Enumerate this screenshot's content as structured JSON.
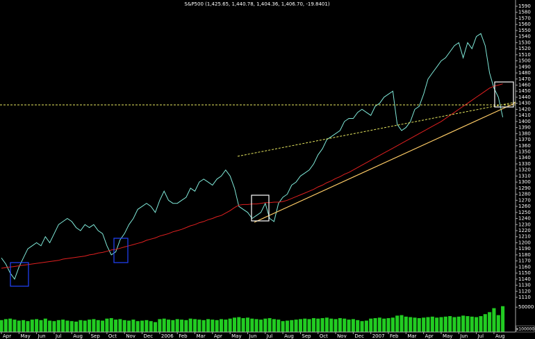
{
  "chart_data": {
    "type": "line",
    "title": "S&P500 (1,425.65, 1,440.78, 1,404.36, 1,406.70, -19.8401)",
    "categories": [
      "Apr",
      null,
      null,
      null,
      "May",
      null,
      null,
      null,
      "Jun",
      null,
      null,
      null,
      "Jul",
      null,
      null,
      null,
      "Aug",
      null,
      null,
      null,
      "Sep",
      null,
      null,
      null,
      "Oct",
      null,
      null,
      null,
      "Nov",
      null,
      null,
      null,
      "Dec",
      null,
      null,
      null,
      "2006",
      null,
      null,
      null,
      "Feb",
      null,
      null,
      null,
      "Mar",
      null,
      null,
      null,
      "Apr",
      null,
      null,
      null,
      "May",
      null,
      null,
      null,
      "Jun",
      null,
      null,
      null,
      "Jul",
      null,
      null,
      null,
      "Aug",
      null,
      null,
      null,
      "Sep",
      null,
      null,
      null,
      "Oct",
      null,
      null,
      null,
      "Nov",
      null,
      null,
      null,
      "Dec",
      null,
      null,
      null,
      "2007",
      null,
      null,
      null,
      "Feb",
      null,
      null,
      null,
      "Mar",
      null,
      null,
      null,
      "Apr",
      null,
      null,
      null,
      "May",
      null,
      null,
      null,
      "Jun",
      null,
      null,
      null,
      "Jul",
      null,
      null,
      null,
      "Aug",
      null,
      null
    ],
    "series": [
      {
        "color": "#7fe8d8",
        "values": [
          1175,
          1165,
          1150,
          1140,
          1160,
          1175,
          1190,
          1195,
          1200,
          1195,
          1210,
          1200,
          1215,
          1230,
          1235,
          1240,
          1235,
          1225,
          1220,
          1230,
          1225,
          1230,
          1220,
          1215,
          1195,
          1180,
          1185,
          1205,
          1215,
          1230,
          1240,
          1255,
          1260,
          1265,
          1260,
          1250,
          1270,
          1285,
          1270,
          1265,
          1265,
          1270,
          1275,
          1290,
          1285,
          1300,
          1305,
          1300,
          1295,
          1305,
          1310,
          1320,
          1310,
          1290,
          1260,
          1255,
          1250,
          1240,
          1245,
          1250,
          1265,
          1240,
          1235,
          1265,
          1275,
          1280,
          1295,
          1300,
          1310,
          1315,
          1320,
          1330,
          1345,
          1355,
          1370,
          1375,
          1380,
          1385,
          1400,
          1405,
          1405,
          1415,
          1420,
          1415,
          1410,
          1425,
          1430,
          1440,
          1445,
          1450,
          1395,
          1385,
          1390,
          1400,
          1420,
          1425,
          1445,
          1470,
          1480,
          1490,
          1500,
          1505,
          1515,
          1525,
          1530,
          1505,
          1530,
          1520,
          1540,
          1545,
          1525,
          1480,
          1455,
          1440,
          1407
        ]
      },
      {
        "color": "#e02020",
        "values": [
          1158,
          1159,
          1160,
          1161,
          1162,
          1163,
          1164,
          1165,
          1166,
          1167,
          1168,
          1169,
          1170,
          1171,
          1173,
          1174,
          1175,
          1176,
          1177,
          1178,
          1180,
          1181,
          1183,
          1184,
          1186,
          1188,
          1189,
          1191,
          1193,
          1195,
          1197,
          1199,
          1201,
          1204,
          1206,
          1208,
          1211,
          1213,
          1215,
          1218,
          1220,
          1222,
          1225,
          1228,
          1230,
          1233,
          1235,
          1238,
          1240,
          1243,
          1245,
          1249,
          1253,
          1258,
          1262,
          1263,
          1263,
          1264,
          1264,
          1265,
          1266,
          1266,
          1267,
          1267,
          1268,
          1270,
          1273,
          1276,
          1279,
          1282,
          1285,
          1288,
          1292,
          1295,
          1299,
          1302,
          1306,
          1309,
          1313,
          1316,
          1320,
          1324,
          1328,
          1332,
          1336,
          1340,
          1344,
          1348,
          1352,
          1356,
          1360,
          1364,
          1368,
          1372,
          1376,
          1380,
          1384,
          1388,
          1392,
          1396,
          1400,
          1405,
          1410,
          1415,
          1420,
          1425,
          1430,
          1435,
          1440,
          1445,
          1450,
          1455,
          1458,
          1460,
          1462
        ]
      },
      {
        "type": "bar",
        "axis": "y2",
        "color": "#22cc22",
        "values": [
          24000,
          26000,
          27000,
          25000,
          23000,
          24000,
          22000,
          25000,
          26000,
          24000,
          27000,
          23000,
          22000,
          24000,
          25000,
          23000,
          22000,
          21000,
          24000,
          23000,
          25000,
          26000,
          24000,
          23000,
          27000,
          28000,
          25000,
          26000,
          24000,
          23000,
          25000,
          22000,
          23000,
          24000,
          22000,
          20000,
          26000,
          27000,
          25000,
          24000,
          26000,
          25000,
          24000,
          27000,
          26000,
          25000,
          24000,
          26000,
          25000,
          24000,
          26000,
          25000,
          27000,
          29000,
          30000,
          28000,
          29000,
          27000,
          26000,
          25000,
          27000,
          28000,
          26000,
          25000,
          22000,
          23000,
          24000,
          25000,
          26000,
          27000,
          26000,
          28000,
          27000,
          28000,
          29000,
          27000,
          26000,
          28000,
          27000,
          25000,
          26000,
          24000,
          22000,
          23000,
          27000,
          28000,
          29000,
          27000,
          28000,
          29000,
          33000,
          34000,
          31000,
          30000,
          29000,
          28000,
          29000,
          30000,
          31000,
          29000,
          30000,
          31000,
          32000,
          30000,
          31000,
          33000,
          32000,
          31000,
          30000,
          32000,
          36000,
          40000,
          48000,
          34000,
          52000
        ]
      }
    ],
    "ylim": [
      1110,
      1590
    ],
    "yticks": [
      1110,
      1120,
      1130,
      1140,
      1150,
      1160,
      1170,
      1180,
      1190,
      1200,
      1210,
      1220,
      1230,
      1240,
      1250,
      1260,
      1270,
      1280,
      1290,
      1300,
      1310,
      1320,
      1330,
      1340,
      1350,
      1360,
      1370,
      1380,
      1390,
      1400,
      1410,
      1420,
      1430,
      1440,
      1450,
      1460,
      1470,
      1480,
      1490,
      1500,
      1510,
      1520,
      1530,
      1540,
      1550,
      1560,
      1570,
      1580,
      1590
    ],
    "y2lim": [
      0,
      60000
    ],
    "y2ticks": [
      50000
    ],
    "y2_unit": "x100000",
    "grid": false
  }
}
